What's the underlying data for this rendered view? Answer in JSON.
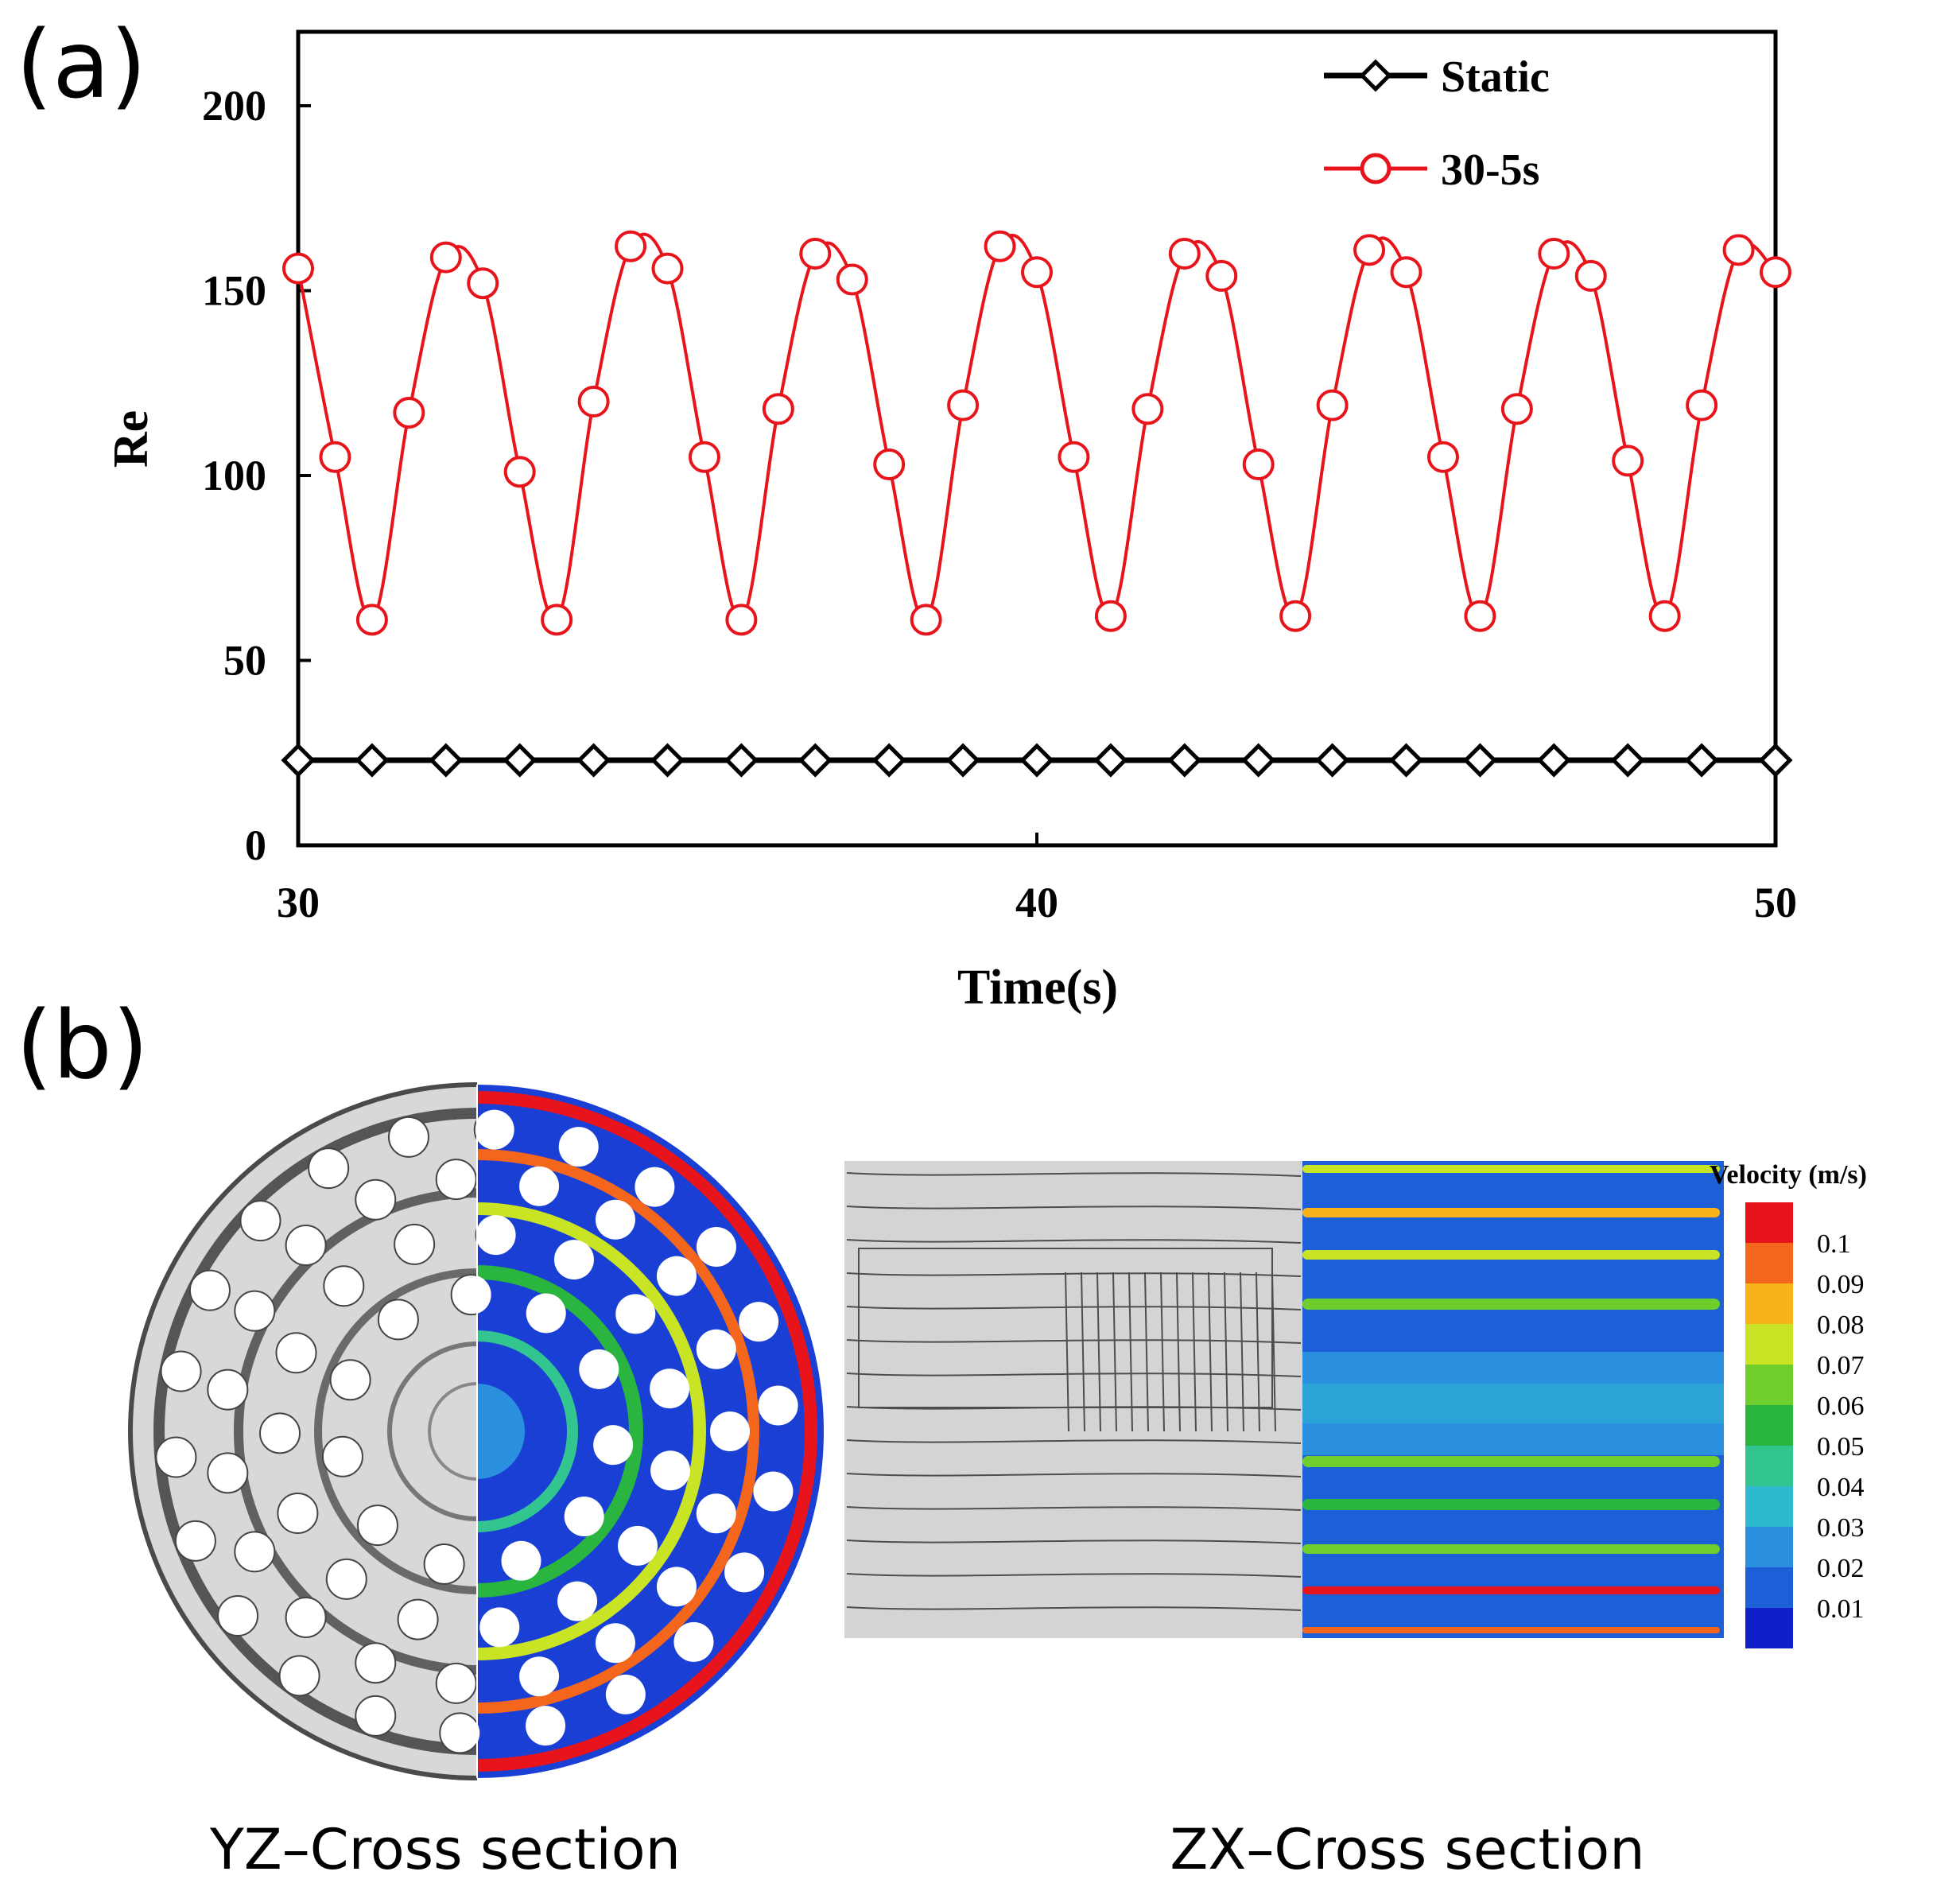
{
  "panel_labels": {
    "a": "(a)",
    "b": "(b)"
  },
  "chart_data": {
    "type": "line",
    "xlabel": "Time(s)",
    "ylabel": "Re",
    "xlim": [
      30,
      50
    ],
    "ylim": [
      0,
      220
    ],
    "x_ticks": [
      30,
      40,
      50
    ],
    "y_ticks": [
      0,
      50,
      100,
      150,
      200
    ],
    "legend_position": "top-right",
    "series": [
      {
        "name": "Static",
        "color": "#000000",
        "marker": "diamond",
        "x": [
          30,
          31,
          32,
          33,
          34,
          35,
          36,
          37,
          38,
          39,
          40,
          41,
          42,
          43,
          44,
          45,
          46,
          47,
          48,
          49,
          50
        ],
        "y": [
          23,
          23,
          23,
          23,
          23,
          23,
          23,
          23,
          23,
          23,
          23,
          23,
          23,
          23,
          23,
          23,
          23,
          23,
          23,
          23,
          23
        ]
      },
      {
        "name": "30-5s",
        "color": "#e8141b",
        "marker": "circle",
        "x": [
          30,
          30.5,
          31,
          31.5,
          32,
          32.5,
          33,
          33.5,
          34,
          34.5,
          35,
          35.5,
          36,
          36.5,
          37,
          37.5,
          38,
          38.5,
          39,
          39.5,
          40,
          40.5,
          41,
          41.5,
          42,
          42.5,
          43,
          43.5,
          44,
          44.5,
          45,
          45.5,
          46,
          46.5,
          47,
          47.5,
          48,
          48.5,
          49,
          49.5,
          50
        ],
        "y": [
          156,
          105,
          61,
          117,
          159,
          152,
          101,
          61,
          120,
          162,
          156,
          105,
          61,
          118,
          160,
          153,
          103,
          61,
          119,
          162,
          155,
          105,
          62,
          118,
          160,
          154,
          103,
          62,
          119,
          161,
          155,
          105,
          62,
          118,
          160,
          154,
          104,
          62,
          119,
          161,
          155
        ]
      }
    ]
  },
  "colorbar": {
    "title": "Velocity (m/s)",
    "labels": [
      "0.1",
      "0.09",
      "0.08",
      "0.07",
      "0.06",
      "0.05",
      "0.04",
      "0.03",
      "0.02",
      "0.01"
    ],
    "colors": [
      "#e8141b",
      "#f4661c",
      "#f8b31a",
      "#c9e424",
      "#6fce2b",
      "#29b53f",
      "#33c58f",
      "#2fb9cf",
      "#2b8fe0",
      "#1d5fd6",
      "#1020c8"
    ]
  },
  "captions": {
    "yz": "YZ–Cross section",
    "zx": "ZX–Cross section"
  }
}
